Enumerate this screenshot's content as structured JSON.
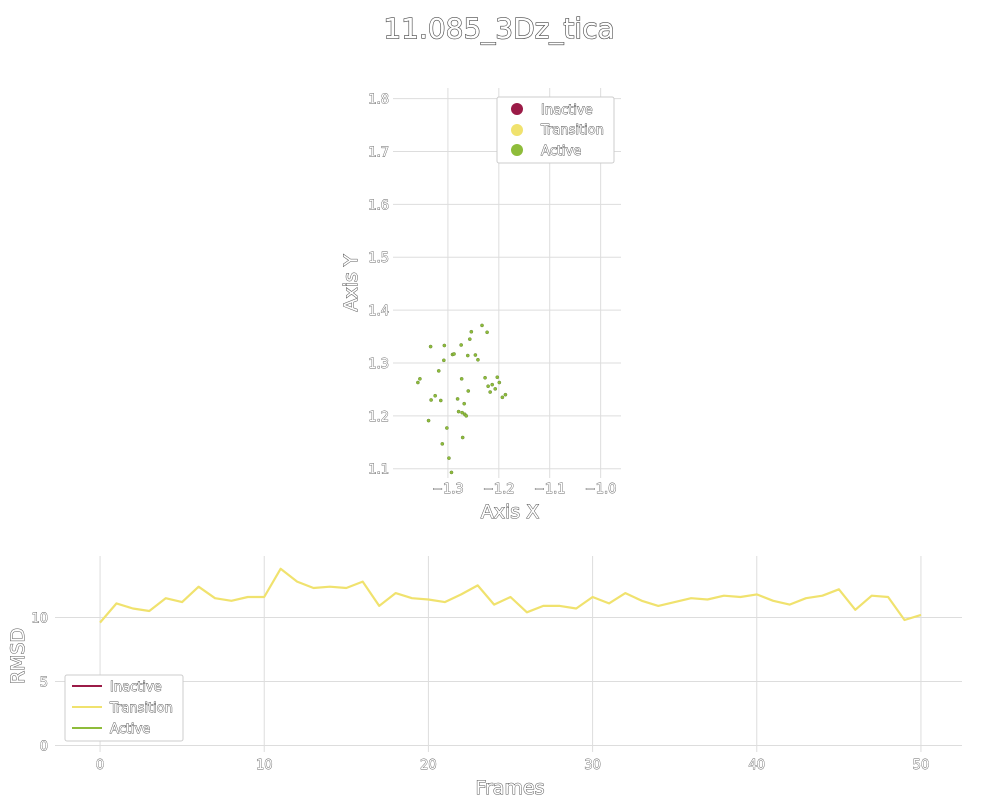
{
  "title": "11.085_3Dz_tica",
  "colors": {
    "inactive": "#9b1b47",
    "transition": "#f0e26e",
    "active": "#8ebc3a"
  },
  "chart_data": [
    {
      "type": "scatter",
      "xlabel": "Axis X",
      "ylabel": "Axis Y",
      "xlim": [
        -1.4,
        -0.96
      ],
      "ylim": [
        1.09,
        1.82
      ],
      "xticks": [
        -1.3,
        -1.2,
        -1.1,
        -1.0
      ],
      "xtick_labels": [
        "−1.3",
        "−1.2",
        "−1.1",
        "−1.0"
      ],
      "yticks": [
        1.1,
        1.2,
        1.3,
        1.4,
        1.5,
        1.6,
        1.7,
        1.8
      ],
      "ytick_labels": [
        "1.1",
        "1.2",
        "1.3",
        "1.4",
        "1.5",
        "1.6",
        "1.7",
        "1.8"
      ],
      "grid": true,
      "legend": "top-right",
      "legend_entries": [
        "Inactive",
        "Transition",
        "Active"
      ],
      "series": [
        {
          "name": "Inactive",
          "x": [],
          "y": []
        },
        {
          "name": "Transition",
          "x": [],
          "y": []
        },
        {
          "name": "Active",
          "x": [
            -1.359,
            -1.355,
            -1.338,
            -1.333,
            -1.334,
            -1.325,
            -1.318,
            -1.314,
            -1.311,
            -1.308,
            -1.307,
            -1.302,
            -1.298,
            -1.293,
            -1.291,
            -1.288,
            -1.281,
            -1.279,
            -1.274,
            -1.273,
            -1.272,
            -1.271,
            -1.268,
            -1.267,
            -1.264,
            -1.261,
            -1.26,
            -1.257,
            -1.254,
            -1.246,
            -1.241,
            -1.233,
            -1.227,
            -1.223,
            -1.221,
            -1.217,
            -1.213,
            -1.207,
            -1.203,
            -1.199,
            -1.193,
            -1.187
          ],
          "y": [
            1.263,
            1.27,
            1.191,
            1.23,
            1.331,
            1.238,
            1.285,
            1.229,
            1.147,
            1.305,
            1.333,
            1.177,
            1.12,
            1.093,
            1.316,
            1.317,
            1.232,
            1.208,
            1.334,
            1.27,
            1.206,
            1.159,
            1.223,
            1.203,
            1.2,
            1.314,
            1.247,
            1.345,
            1.359,
            1.315,
            1.306,
            1.371,
            1.272,
            1.358,
            1.256,
            1.245,
            1.259,
            1.251,
            1.273,
            1.263,
            1.235,
            1.24
          ]
        }
      ]
    },
    {
      "type": "line",
      "xlabel": "Frames",
      "ylabel": "RMSD",
      "xlim": [
        -2.5,
        52.5
      ],
      "ylim": [
        -0.2,
        14.8
      ],
      "xticks": [
        0,
        10,
        20,
        30,
        40,
        50
      ],
      "yticks": [
        0,
        5,
        10
      ],
      "grid": true,
      "legend": "bottom-left",
      "legend_entries": [
        "Inactive",
        "Transition",
        "Active"
      ],
      "series": [
        {
          "name": "Transition",
          "x": [
            0,
            1,
            2,
            3,
            4,
            5,
            6,
            7,
            8,
            9,
            10,
            11,
            12,
            13,
            14,
            15,
            16,
            17,
            18,
            19,
            20,
            21,
            22,
            23,
            24,
            25,
            26,
            27,
            28,
            29,
            30,
            31,
            32,
            33,
            34,
            35,
            36,
            37,
            38,
            39,
            40,
            41,
            42,
            43,
            44,
            45,
            46,
            47,
            48,
            49,
            50
          ],
          "y": [
            9.6,
            11.1,
            10.7,
            10.5,
            11.5,
            11.2,
            12.4,
            11.5,
            11.3,
            11.6,
            11.6,
            13.8,
            12.8,
            12.3,
            12.4,
            12.3,
            12.8,
            10.9,
            11.9,
            11.5,
            11.4,
            11.2,
            11.8,
            12.5,
            11.0,
            11.6,
            10.4,
            10.9,
            10.9,
            10.7,
            11.6,
            11.1,
            11.9,
            11.3,
            10.9,
            11.2,
            11.5,
            11.4,
            11.7,
            11.6,
            11.8,
            11.3,
            11.0,
            11.5,
            11.7,
            12.2,
            10.6,
            11.7,
            11.6,
            9.8,
            10.2
          ]
        }
      ]
    }
  ]
}
